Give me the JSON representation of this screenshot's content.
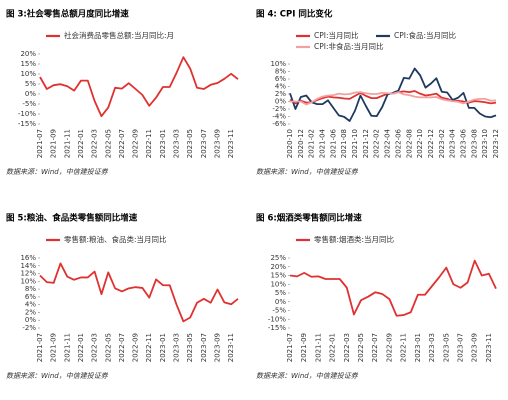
{
  "chart_data": [
    {
      "type": "line",
      "title": "图 3:社会零售总额月度同比增速",
      "source": "数据来源：Wind，中信建投证券",
      "categories": [
        "2021-07",
        null,
        "2021-09",
        null,
        "2021-11",
        null,
        "2022-01",
        null,
        "2022-03",
        null,
        "2022-05",
        null,
        "2022-07",
        null,
        "2022-09",
        null,
        "2022-11",
        null,
        "2023-01",
        null,
        "2023-03",
        null,
        "2023-05",
        null,
        "2023-07",
        null,
        "2023-09",
        null,
        "2023-11",
        null
      ],
      "series": [
        {
          "name": "社会消费品零售总额:当月同比:月",
          "color": "#e03131",
          "values": [
            8.5,
            2.5,
            4.4,
            4.9,
            3.9,
            1.7,
            6.7,
            6.7,
            -3.5,
            -11.1,
            -6.7,
            3.1,
            2.7,
            5.4,
            2.5,
            -0.5,
            -5.9,
            -1.8,
            3.5,
            3.5,
            10.6,
            18.4,
            12.7,
            3.1,
            2.5,
            4.6,
            5.5,
            7.6,
            10.1,
            7.4
          ]
        }
      ],
      "ylim": [
        -15,
        20
      ],
      "yticks": [
        {
          "value": 20,
          "label": "20%"
        },
        {
          "value": 15,
          "label": "15%"
        },
        {
          "value": 10,
          "label": "10%"
        },
        {
          "value": 5,
          "label": "5%"
        },
        {
          "value": 0,
          "label": "0%"
        },
        {
          "value": -5,
          "label": "-5%"
        },
        {
          "value": -10,
          "label": "-10%"
        },
        {
          "value": -15,
          "label": "-15%"
        }
      ]
    },
    {
      "type": "line",
      "title": "图 4: CPI 同比变化",
      "source": "数据来源：Wind，中信建投证券",
      "categories": [
        "2020-10",
        null,
        "2020-12",
        null,
        "2021-02",
        null,
        "2021-04",
        null,
        "2021-06",
        null,
        "2021-08",
        null,
        "2021-10",
        null,
        "2021-12",
        null,
        "2022-02",
        null,
        "2022-04",
        null,
        "2022-06",
        null,
        "2022-08",
        null,
        "2022-10",
        null,
        "2022-12",
        null,
        "2023-02",
        null,
        "2023-04",
        null,
        "2023-06",
        null,
        "2023-08",
        null,
        "2023-10",
        null,
        "2023-12"
      ],
      "series": [
        {
          "name": "CPI:当月同比",
          "color": "#e03131",
          "values": [
            0.5,
            -0.5,
            0.2,
            -0.3,
            -0.2,
            0.4,
            0.9,
            1.3,
            1.1,
            1.0,
            0.8,
            0.7,
            1.5,
            2.3,
            1.5,
            0.9,
            0.9,
            1.5,
            2.1,
            2.1,
            2.5,
            2.7,
            2.5,
            2.8,
            2.1,
            1.6,
            1.8,
            2.1,
            1.0,
            0.7,
            0.1,
            0.2,
            0.0,
            -0.3,
            0.1,
            0.0,
            -0.2,
            -0.5,
            -0.3
          ]
        },
        {
          "name": "CPI:食品:当月同比",
          "color": "#1f3a5f",
          "values": [
            2.2,
            -2.0,
            1.2,
            1.6,
            -0.2,
            -0.7,
            -0.7,
            0.3,
            -1.7,
            -3.7,
            -4.1,
            -5.2,
            -2.4,
            1.6,
            -1.2,
            -3.8,
            -3.9,
            -1.5,
            1.9,
            2.3,
            2.9,
            6.3,
            6.1,
            8.8,
            7.0,
            3.7,
            4.8,
            6.2,
            2.6,
            2.4,
            0.4,
            1.0,
            2.3,
            -1.7,
            -1.7,
            -3.2,
            -4.0,
            -4.2,
            -3.7
          ]
        },
        {
          "name": "CPI:非食品:当月同比",
          "color": "#f2a0a0",
          "values": [
            0.0,
            0.0,
            0.0,
            -0.8,
            -0.2,
            0.7,
            1.3,
            1.6,
            1.7,
            2.1,
            1.9,
            2.0,
            2.4,
            2.5,
            2.2,
            2.0,
            2.0,
            2.3,
            2.2,
            2.1,
            2.5,
            1.9,
            1.7,
            1.3,
            1.1,
            1.1,
            1.1,
            1.2,
            0.6,
            0.3,
            0.1,
            -0.1,
            -0.5,
            0.0,
            0.5,
            0.7,
            0.7,
            0.2,
            0.3
          ]
        }
      ],
      "ylim": [
        -6,
        10
      ],
      "yticks": [
        {
          "value": 10,
          "label": "10%"
        },
        {
          "value": 8,
          "label": "8%"
        },
        {
          "value": 6,
          "label": "6%"
        },
        {
          "value": 4,
          "label": "4%"
        },
        {
          "value": 2,
          "label": "2%"
        },
        {
          "value": 0,
          "label": "0%"
        },
        {
          "value": -2,
          "label": "-2%"
        },
        {
          "value": -4,
          "label": "-4%"
        },
        {
          "value": -6,
          "label": "-6%"
        }
      ]
    },
    {
      "type": "line",
      "title": "图 5:粮油、食品类零售额同比增速",
      "source": "数据来源：Wind，中信建投证券",
      "categories": [
        "2021-07",
        null,
        "2021-09",
        null,
        "2021-11",
        null,
        "2022-01",
        null,
        "2022-03",
        null,
        "2022-05",
        null,
        "2022-07",
        null,
        "2022-09",
        null,
        "2022-11",
        null,
        "2023-01",
        null,
        "2023-03",
        null,
        "2023-05",
        null,
        "2023-07",
        null,
        "2023-09",
        null,
        "2023-11",
        null
      ],
      "series": [
        {
          "name": "零售额:粮油、食品类:当月同比",
          "color": "#e03131",
          "values": [
            11.5,
            9.8,
            9.6,
            14.6,
            11.2,
            10.4,
            11.0,
            11.0,
            12.5,
            6.7,
            12.3,
            8.2,
            7.4,
            8.2,
            8.5,
            8.3,
            5.8,
            10.5,
            9.0,
            9.0,
            4.0,
            -0.3,
            0.7,
            4.5,
            5.5,
            4.5,
            7.9,
            4.6,
            4.1,
            5.5
          ]
        }
      ],
      "ylim": [
        -2,
        16
      ],
      "yticks": [
        {
          "value": 16,
          "label": "16%"
        },
        {
          "value": 14,
          "label": "14%"
        },
        {
          "value": 12,
          "label": "12%"
        },
        {
          "value": 10,
          "label": "10%"
        },
        {
          "value": 8,
          "label": "8%"
        },
        {
          "value": 6,
          "label": "6%"
        },
        {
          "value": 4,
          "label": "4%"
        },
        {
          "value": 2,
          "label": "2%"
        },
        {
          "value": 0,
          "label": "0%"
        },
        {
          "value": -2,
          "label": "-2%"
        }
      ]
    },
    {
      "type": "line",
      "title": "图 6:烟酒类零售额同比增速",
      "source": "数据来源：Wind，中信建投证券",
      "categories": [
        "2021-07",
        null,
        "2021-09",
        null,
        "2021-11",
        null,
        "2022-01",
        null,
        "2022-03",
        null,
        "2022-05",
        null,
        "2022-07",
        null,
        "2022-09",
        null,
        "2022-11",
        null,
        "2023-01",
        null,
        "2023-03",
        null,
        "2023-05",
        null,
        "2023-07",
        null,
        "2023-09",
        null,
        "2023-11",
        null
      ],
      "series": [
        {
          "name": "零售额:烟酒类:当月同比",
          "color": "#e03131",
          "values": [
            15.0,
            14.5,
            16.5,
            14.3,
            14.5,
            13.0,
            13.0,
            13.0,
            8.0,
            -7.3,
            0.9,
            2.9,
            5.4,
            4.4,
            1.5,
            -8.0,
            -7.6,
            -6.0,
            4.0,
            4.0,
            9.0,
            14.0,
            19.5,
            10.0,
            8.0,
            11.0,
            23.5,
            15.0,
            16.0,
            7.5
          ]
        }
      ],
      "ylim": [
        -15,
        25
      ],
      "yticks": [
        {
          "value": 25,
          "label": "25%"
        },
        {
          "value": 20,
          "label": "20%"
        },
        {
          "value": 15,
          "label": "15%"
        },
        {
          "value": 10,
          "label": "10%"
        },
        {
          "value": 5,
          "label": "5%"
        },
        {
          "value": 0,
          "label": "0%"
        },
        {
          "value": -5,
          "label": "-5%"
        },
        {
          "value": -10,
          "label": "-10%"
        },
        {
          "value": -15,
          "label": "-15%"
        }
      ]
    }
  ]
}
